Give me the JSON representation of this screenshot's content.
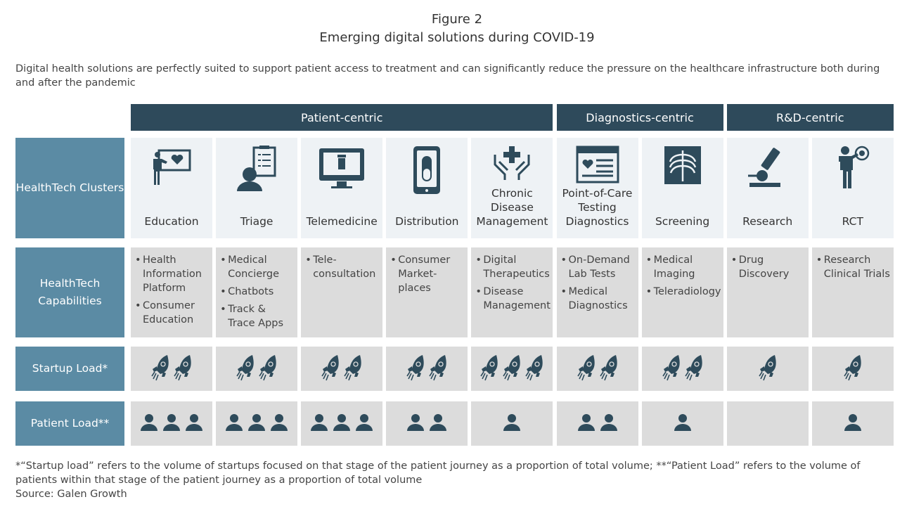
{
  "figure_label": "Figure 2",
  "title": "Emerging digital solutions during COVID-19",
  "intro": "Digital health solutions are perfectly suited to support patient access to treatment and can significantly reduce the pressure on the healthcare infrastructure both during and after the pandemic",
  "groups": [
    {
      "label": "Patient-centric",
      "span": 5
    },
    {
      "label": "Diagnostics-centric",
      "span": 2
    },
    {
      "label": "R&D-centric",
      "span": 2
    }
  ],
  "row_labels": {
    "clusters": "HealthTech Clusters",
    "capabilities": "HealthTech Capabilities",
    "startup": "Startup Load*",
    "patient": "Patient Load**"
  },
  "icon_color": "#2e4b5b",
  "columns": [
    {
      "name": "Education",
      "icon": "teacher-board-heart-icon",
      "capabilities": [
        "Health Information Platform",
        "Consumer Education"
      ],
      "startup_load": 2,
      "patient_load": 3
    },
    {
      "name": "Triage",
      "icon": "person-checklist-icon",
      "capabilities": [
        "Medical Concierge",
        "Chatbots",
        "Track & Trace Apps"
      ],
      "startup_load": 2,
      "patient_load": 3
    },
    {
      "name": "Telemedicine",
      "icon": "monitor-pill-bottle-icon",
      "capabilities": [
        "Tele-consultation"
      ],
      "startup_load": 2,
      "patient_load": 3
    },
    {
      "name": "Distribution",
      "icon": "phone-capsule-icon",
      "capabilities": [
        "Consumer Market-places"
      ],
      "startup_load": 2,
      "patient_load": 2
    },
    {
      "name": "Chronic Disease Management",
      "icon": "hands-cross-icon",
      "capabilities": [
        "Digital Therapeutics",
        "Disease Management"
      ],
      "startup_load": 3,
      "patient_load": 1
    },
    {
      "name": "Point-of-Care Testing Diagnostics",
      "icon": "browser-heart-icon",
      "capabilities": [
        "On-Demand Lab Tests",
        "Medical Diagnostics"
      ],
      "startup_load": 2,
      "patient_load": 2
    },
    {
      "name": "Screening",
      "icon": "xray-ribcage-icon",
      "capabilities": [
        "Medical Imaging",
        "Teleradiology"
      ],
      "startup_load": 2,
      "patient_load": 1
    },
    {
      "name": "Research",
      "icon": "microscope-icon",
      "capabilities": [
        "Drug Discovery"
      ],
      "startup_load": 1,
      "patient_load": 0
    },
    {
      "name": "RCT",
      "icon": "person-target-icon",
      "capabilities": [
        "Research Clinical Trials"
      ],
      "startup_load": 1,
      "patient_load": 1
    }
  ],
  "footnote": "*“Startup load” refers to the volume of startups focused on that stage of the patient journey as a proportion of total volume; **“Patient Load” refers to the volume of patients within that stage of the patient journey as a proportion of total volume",
  "source": "Source: Galen Growth"
}
